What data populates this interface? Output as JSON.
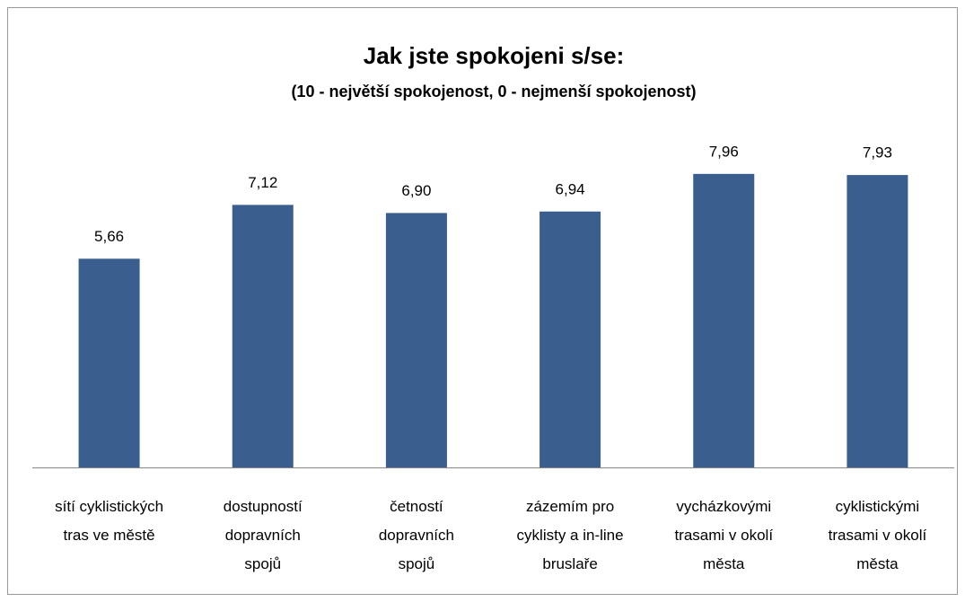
{
  "chart_data": {
    "type": "bar",
    "title": "Jak jste spokojeni s/se:",
    "subtitle": "(10 -  největší spokojenost, 0 - nejmenší spokojenost)",
    "categories": [
      "sítí cyklistických\ntras ve městě",
      "dostupností\ndopravních\nspojů",
      "četností\ndopravních\nspojů",
      "zázemím pro\ncyklisty a in-line\nbruslaře",
      "vycházkovými\ntrasami v okolí\nměsta",
      "cyklistickými\ntrasami v okolí\nměsta"
    ],
    "values": [
      5.66,
      7.12,
      6.9,
      6.94,
      7.96,
      7.93
    ],
    "value_labels": [
      "5,66",
      "7,12",
      "6,90",
      "6,94",
      "7,96",
      "7,93"
    ],
    "color": "#3a5f8f",
    "ylim": [
      0,
      10
    ]
  }
}
